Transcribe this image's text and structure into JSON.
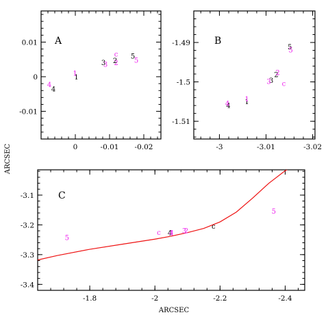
{
  "colors": {
    "black": "#000000",
    "magenta": "#ee22ee",
    "curve": "#ee1111"
  },
  "axis_label_x": "ARCSEC",
  "axis_label_y": "ARCSEC",
  "chart_data": [
    {
      "panel": "A",
      "type": "scatter",
      "title": "A",
      "xlim": [
        0.01,
        -0.025
      ],
      "ylim": [
        -0.018,
        0.019
      ],
      "xticks": [
        {
          "v": 0,
          "label": "0"
        },
        {
          "v": -0.01,
          "label": "-0.01"
        },
        {
          "v": -0.02,
          "label": "-0.02"
        }
      ],
      "yticks": [
        {
          "v": 0.01,
          "label": "0.01"
        },
        {
          "v": 0,
          "label": "0"
        },
        {
          "v": -0.01,
          "label": "-0.01"
        }
      ],
      "points": [
        {
          "label": "1",
          "x": -0.0003,
          "y": -0.0003,
          "color": "black"
        },
        {
          "label": "1",
          "x": 0.0001,
          "y": 0.0008,
          "color": "magenta"
        },
        {
          "label": "4",
          "x": 0.0064,
          "y": -0.0038,
          "color": "black"
        },
        {
          "label": "4",
          "x": 0.0076,
          "y": -0.0025,
          "color": "magenta"
        },
        {
          "label": "3",
          "x": -0.0082,
          "y": 0.0039,
          "color": "black"
        },
        {
          "label": "3",
          "x": -0.0088,
          "y": 0.0034,
          "color": "magenta"
        },
        {
          "label": "2",
          "x": -0.0116,
          "y": 0.0045,
          "color": "black"
        },
        {
          "label": "2",
          "x": -0.0119,
          "y": 0.0039,
          "color": "magenta"
        },
        {
          "label": "c",
          "x": -0.0119,
          "y": 0.0063,
          "color": "magenta"
        },
        {
          "label": "5",
          "x": -0.0168,
          "y": 0.0057,
          "color": "black"
        },
        {
          "label": "5",
          "x": -0.0178,
          "y": 0.0046,
          "color": "magenta"
        }
      ]
    },
    {
      "panel": "B",
      "type": "scatter",
      "title": "B",
      "xlim": [
        -2.9945,
        -3.0205
      ],
      "ylim": [
        -1.5145,
        -1.482
      ],
      "xticks": [
        {
          "v": -3,
          "label": "-3"
        },
        {
          "v": -3.01,
          "label": "-3.01"
        },
        {
          "v": -3.02,
          "label": "-3.02"
        }
      ],
      "yticks": [
        {
          "v": -1.49,
          "label": "-1.49"
        },
        {
          "v": -1.5,
          "label": "-1.5"
        },
        {
          "v": -1.51,
          "label": "-1.51"
        }
      ],
      "points": [
        {
          "label": "4",
          "x": -3.0019,
          "y": -1.5062,
          "color": "black"
        },
        {
          "label": "4",
          "x": -3.0017,
          "y": -1.5056,
          "color": "magenta"
        },
        {
          "label": "1",
          "x": -3.0059,
          "y": -1.5052,
          "color": "black"
        },
        {
          "label": "1",
          "x": -3.0059,
          "y": -1.5045,
          "color": "magenta"
        },
        {
          "label": "3",
          "x": -3.0111,
          "y": -1.4998,
          "color": "black"
        },
        {
          "label": "3",
          "x": -3.0106,
          "y": -1.5001,
          "color": "magenta"
        },
        {
          "label": "2",
          "x": -3.0122,
          "y": -1.4983,
          "color": "black"
        },
        {
          "label": "2",
          "x": -3.0125,
          "y": -1.4978,
          "color": "magenta"
        },
        {
          "label": "c",
          "x": -3.0138,
          "y": -1.5006,
          "color": "magenta"
        },
        {
          "label": "5",
          "x": -3.0151,
          "y": -1.4913,
          "color": "black"
        },
        {
          "label": "5",
          "x": -3.0153,
          "y": -1.4921,
          "color": "magenta"
        }
      ]
    },
    {
      "panel": "C",
      "type": "scatter",
      "title": "C",
      "xlim": [
        -1.64,
        -2.46
      ],
      "ylim": [
        -3.42,
        -3.015
      ],
      "xticks": [
        {
          "v": -1.8,
          "label": "-1.8"
        },
        {
          "v": -2,
          "label": "-2"
        },
        {
          "v": -2.2,
          "label": "-2.2"
        },
        {
          "v": -2.4,
          "label": "-2.4"
        }
      ],
      "yticks": [
        {
          "v": -3.1,
          "label": "-3.1"
        },
        {
          "v": -3.2,
          "label": "-3.2"
        },
        {
          "v": -3.3,
          "label": "-3.3"
        },
        {
          "v": -3.4,
          "label": "-3.4"
        }
      ],
      "points": [
        {
          "label": "5",
          "x": -1.73,
          "y": -3.245,
          "color": "magenta"
        },
        {
          "label": "c",
          "x": -2.012,
          "y": -3.228,
          "color": "magenta"
        },
        {
          "label": "4",
          "x": -2.046,
          "y": -3.229,
          "color": "black"
        },
        {
          "label": "4",
          "x": -2.05,
          "y": -3.229,
          "color": "magenta"
        },
        {
          "label": "1",
          "x": -2.053,
          "y": -3.229,
          "color": "magenta"
        },
        {
          "label": "3",
          "x": -2.09,
          "y": -3.222,
          "color": "magenta"
        },
        {
          "label": "2",
          "x": -2.096,
          "y": -3.222,
          "color": "magenta"
        },
        {
          "label": "c",
          "x": -2.18,
          "y": -3.207,
          "color": "black"
        },
        {
          "label": "5",
          "x": -2.365,
          "y": -3.157,
          "color": "magenta"
        }
      ],
      "curve": {
        "x": [
          -1.64,
          -1.7,
          -1.8,
          -1.9,
          -2.0,
          -2.05,
          -2.1,
          -2.15,
          -2.2,
          -2.25,
          -2.3,
          -2.35,
          -2.4,
          -2.43
        ],
        "y": [
          -3.318,
          -3.303,
          -3.282,
          -3.265,
          -3.248,
          -3.238,
          -3.226,
          -3.212,
          -3.19,
          -3.157,
          -3.11,
          -3.06,
          -3.018,
          -3.0
        ]
      }
    }
  ]
}
